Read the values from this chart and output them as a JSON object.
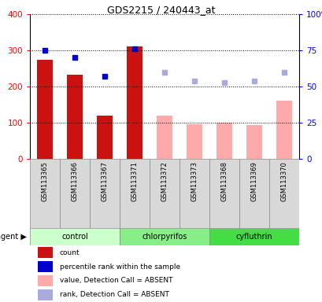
{
  "title": "GDS2215 / 240443_at",
  "samples": [
    "GSM113365",
    "GSM113366",
    "GSM113367",
    "GSM113371",
    "GSM113372",
    "GSM113373",
    "GSM113368",
    "GSM113369",
    "GSM113370"
  ],
  "groups": [
    {
      "name": "control",
      "indices": [
        0,
        1,
        2
      ],
      "color": "#ccffcc"
    },
    {
      "name": "chlorpyrifos",
      "indices": [
        3,
        4,
        5
      ],
      "color": "#88ee88"
    },
    {
      "name": "cyfluthrin",
      "indices": [
        6,
        7,
        8
      ],
      "color": "#44dd44"
    }
  ],
  "bar_values_present": [
    275,
    232,
    120,
    310,
    null,
    null,
    null,
    null,
    null
  ],
  "bar_values_absent": [
    null,
    null,
    null,
    null,
    120,
    95,
    100,
    93,
    160
  ],
  "bar_color_present": "#cc1111",
  "bar_color_absent": "#ffaaaa",
  "dot_blue_present": [
    300,
    280,
    228,
    305,
    null,
    null,
    null,
    null,
    null
  ],
  "dot_blue_absent": [
    null,
    null,
    null,
    null,
    240,
    215,
    210,
    215,
    240
  ],
  "dot_color_present": "#0000cc",
  "dot_color_absent": "#aaaadd",
  "ylim_left": [
    0,
    400
  ],
  "ylim_right": [
    0,
    100
  ],
  "left_yticks": [
    0,
    100,
    200,
    300,
    400
  ],
  "right_yticks": [
    0,
    25,
    50,
    75,
    100
  ],
  "right_yticklabels": [
    "0",
    "25",
    "50",
    "75",
    "100%"
  ],
  "bar_width": 0.55,
  "legend_items": [
    {
      "color": "#cc1111",
      "label": "count"
    },
    {
      "color": "#0000cc",
      "label": "percentile rank within the sample"
    },
    {
      "color": "#ffaaaa",
      "label": "value, Detection Call = ABSENT"
    },
    {
      "color": "#aaaadd",
      "label": "rank, Detection Call = ABSENT"
    }
  ]
}
